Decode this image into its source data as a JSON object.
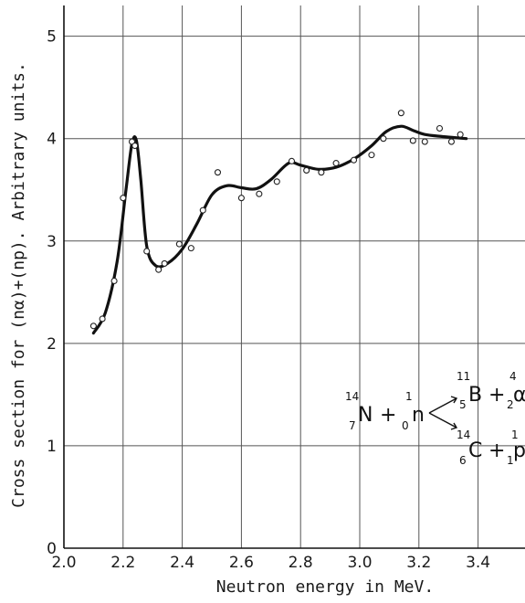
{
  "chart_data": {
    "type": "scatter",
    "xlabel": "Neutron energy in MeV.",
    "ylabel": "Cross section for (nα)+(np). Arbitrary units.",
    "xlim": [
      2.0,
      3.5
    ],
    "ylim": [
      0,
      5.3
    ],
    "x_ticks": [
      "2.0",
      "2.2",
      "2.4",
      "2.6",
      "2.8",
      "3.0",
      "3.2",
      "3.4"
    ],
    "y_ticks": [
      "0",
      "1",
      "2",
      "3",
      "4",
      "5"
    ],
    "grid": true,
    "series": [
      {
        "kind": "points",
        "x": [
          2.1,
          2.13,
          2.17,
          2.2,
          2.23,
          2.24,
          2.28,
          2.32,
          2.34,
          2.39,
          2.43,
          2.47,
          2.52,
          2.6,
          2.66,
          2.72,
          2.77,
          2.82,
          2.87,
          2.92,
          2.98,
          3.04,
          3.08,
          3.14,
          3.18,
          3.22,
          3.27,
          3.31,
          3.34
        ],
        "y": [
          2.17,
          2.24,
          2.61,
          3.42,
          3.97,
          3.93,
          2.9,
          2.72,
          2.78,
          2.97,
          2.93,
          3.3,
          3.67,
          3.42,
          3.46,
          3.58,
          3.78,
          3.69,
          3.67,
          3.76,
          3.79,
          3.84,
          4.0,
          4.25,
          3.98,
          3.97,
          4.1,
          3.97,
          4.04
        ]
      },
      {
        "kind": "curve",
        "x": [
          2.1,
          2.14,
          2.18,
          2.21,
          2.23,
          2.245,
          2.26,
          2.28,
          2.31,
          2.35,
          2.4,
          2.45,
          2.5,
          2.55,
          2.6,
          2.65,
          2.7,
          2.76,
          2.8,
          2.86,
          2.92,
          2.98,
          3.04,
          3.09,
          3.14,
          3.18,
          3.22,
          3.28,
          3.32,
          3.36
        ],
        "y": [
          2.1,
          2.3,
          2.8,
          3.5,
          3.95,
          3.98,
          3.6,
          2.95,
          2.76,
          2.78,
          2.92,
          3.17,
          3.45,
          3.54,
          3.52,
          3.51,
          3.6,
          3.76,
          3.74,
          3.7,
          3.72,
          3.8,
          3.93,
          4.07,
          4.12,
          4.08,
          4.04,
          4.02,
          4.01,
          4.0
        ]
      }
    ],
    "annotation": {
      "target_mass": "14",
      "target_charge": "7",
      "target": "N",
      "projectile_mass": "1",
      "projectile_charge": "0",
      "projectile": "n",
      "products": [
        {
          "m1": "11",
          "z1": "5",
          "s1": "B",
          "m2": "4",
          "z2": "2",
          "s2": "α"
        },
        {
          "m1": "14",
          "z1": "6",
          "s1": "C",
          "m2": "1",
          "z2": "1",
          "s2": "p"
        }
      ],
      "plus": "+"
    }
  }
}
